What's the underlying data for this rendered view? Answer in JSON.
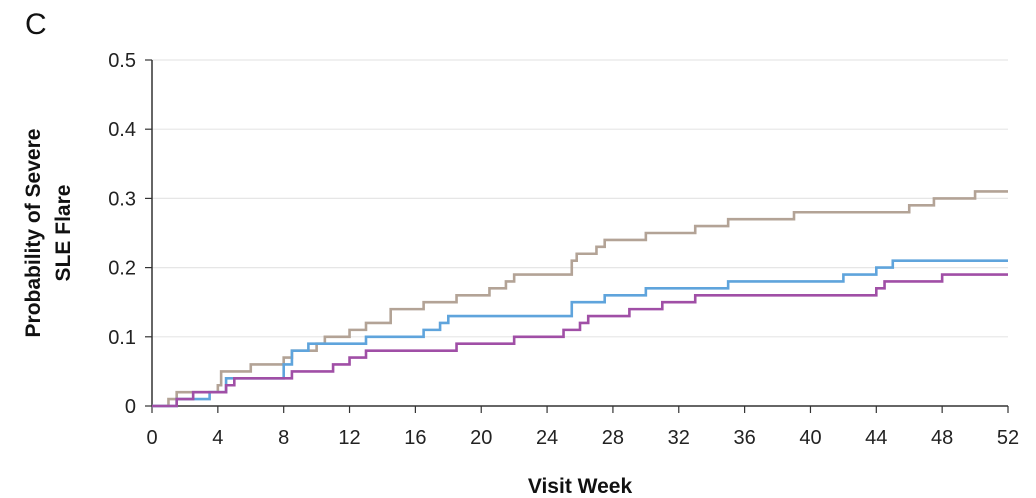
{
  "panel_label": "C",
  "chart_data": {
    "type": "line",
    "title": "",
    "xlabel": "Visit Week",
    "ylabel_lines": [
      "Probability of Severe",
      "SLE Flare"
    ],
    "xlim": [
      0,
      52
    ],
    "ylim": [
      0,
      0.5
    ],
    "x_ticks": [
      0,
      4,
      8,
      12,
      16,
      20,
      24,
      28,
      32,
      36,
      40,
      44,
      48,
      52
    ],
    "y_ticks": [
      0,
      0.1,
      0.2,
      0.3,
      0.4,
      0.5
    ],
    "y_tick_labels": [
      "0",
      "0.1",
      "0.2",
      "0.3",
      "0.4",
      "0.5"
    ],
    "grid": "horizontal",
    "legend": "none",
    "step": true,
    "series": [
      {
        "color": "#b3a396",
        "points": [
          [
            0,
            0
          ],
          [
            1,
            0.01
          ],
          [
            1.5,
            0.02
          ],
          [
            3,
            0.02
          ],
          [
            4,
            0.03
          ],
          [
            4.2,
            0.05
          ],
          [
            6,
            0.06
          ],
          [
            8,
            0.07
          ],
          [
            8.5,
            0.08
          ],
          [
            10,
            0.09
          ],
          [
            10.5,
            0.1
          ],
          [
            12,
            0.11
          ],
          [
            13,
            0.12
          ],
          [
            14.5,
            0.14
          ],
          [
            16,
            0.14
          ],
          [
            16.5,
            0.15
          ],
          [
            18,
            0.15
          ],
          [
            18.5,
            0.16
          ],
          [
            20,
            0.16
          ],
          [
            20.5,
            0.17
          ],
          [
            21.5,
            0.18
          ],
          [
            22,
            0.19
          ],
          [
            25,
            0.19
          ],
          [
            25.5,
            0.21
          ],
          [
            25.8,
            0.22
          ],
          [
            27,
            0.23
          ],
          [
            27.5,
            0.24
          ],
          [
            30,
            0.25
          ],
          [
            33,
            0.26
          ],
          [
            35,
            0.27
          ],
          [
            39,
            0.28
          ],
          [
            46,
            0.29
          ],
          [
            47.5,
            0.3
          ],
          [
            50,
            0.31
          ],
          [
            52,
            0.31
          ]
        ]
      },
      {
        "color": "#5fa4dc",
        "points": [
          [
            0,
            0
          ],
          [
            1.5,
            0.01
          ],
          [
            3.5,
            0.02
          ],
          [
            4.5,
            0.04
          ],
          [
            8,
            0.06
          ],
          [
            8.5,
            0.08
          ],
          [
            9.5,
            0.09
          ],
          [
            13,
            0.1
          ],
          [
            16.5,
            0.11
          ],
          [
            17.5,
            0.12
          ],
          [
            18,
            0.13
          ],
          [
            25,
            0.13
          ],
          [
            25.5,
            0.15
          ],
          [
            27.5,
            0.16
          ],
          [
            30,
            0.17
          ],
          [
            35,
            0.18
          ],
          [
            42,
            0.19
          ],
          [
            44,
            0.2
          ],
          [
            45,
            0.21
          ],
          [
            52,
            0.21
          ]
        ]
      },
      {
        "color": "#a04fa6",
        "points": [
          [
            0,
            0
          ],
          [
            1.5,
            0.01
          ],
          [
            2,
            0.01
          ],
          [
            2.5,
            0.02
          ],
          [
            4,
            0.02
          ],
          [
            4.5,
            0.03
          ],
          [
            5,
            0.04
          ],
          [
            8,
            0.04
          ],
          [
            8.5,
            0.05
          ],
          [
            11,
            0.06
          ],
          [
            12,
            0.07
          ],
          [
            13,
            0.08
          ],
          [
            18,
            0.08
          ],
          [
            18.5,
            0.09
          ],
          [
            22,
            0.1
          ],
          [
            24,
            0.1
          ],
          [
            25,
            0.11
          ],
          [
            26,
            0.12
          ],
          [
            26.5,
            0.13
          ],
          [
            29,
            0.14
          ],
          [
            31,
            0.15
          ],
          [
            33,
            0.16
          ],
          [
            44,
            0.17
          ],
          [
            44.5,
            0.18
          ],
          [
            48,
            0.19
          ],
          [
            52,
            0.19
          ]
        ]
      }
    ]
  }
}
